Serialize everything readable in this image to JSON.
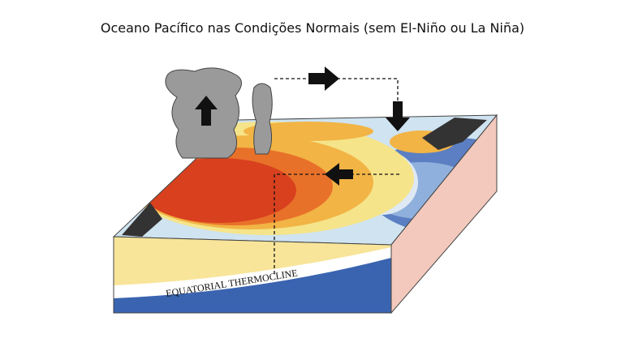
{
  "title": "Oceano Pacífico nas Condições Normais (sem El-Niño ou La Niña)",
  "labels": {
    "thermocline": "EQUATORIAL THERMOCLINE"
  }
}
